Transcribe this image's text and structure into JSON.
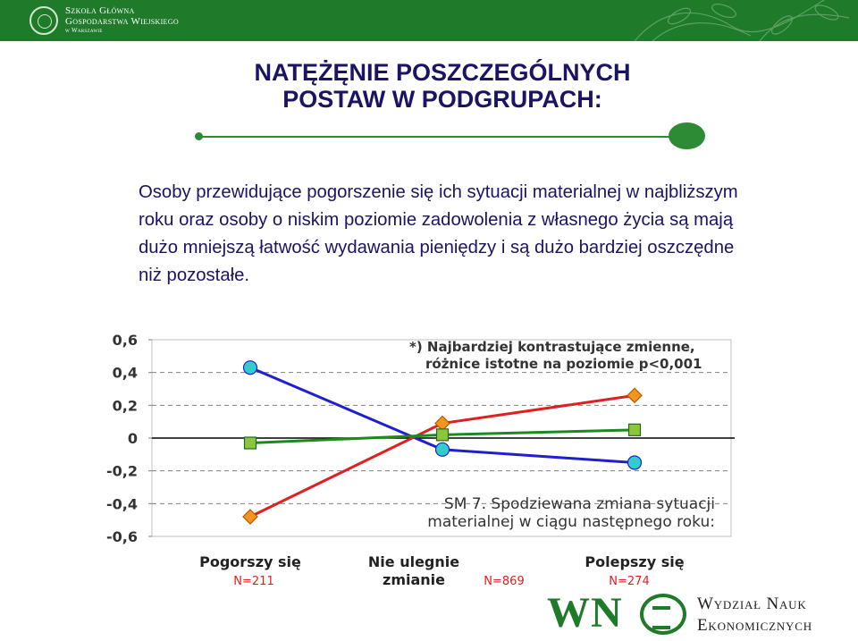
{
  "header": {
    "school_line1": "Szkoła Główna",
    "school_line2": "Gospodarstwa Wiejskiego",
    "school_line3": "w Warszawie"
  },
  "title": {
    "line1": "NATĘŻĘNIE POSZCZEGÓLNYCH",
    "line2": "POSTAW W PODGRUPACH:"
  },
  "paragraph": "Osoby przewidujące pogorszenie się ich sytuacji materialnej w najbliższym roku oraz osoby o niskim poziomie zadowolenia z własnego życia są mają dużo mniejszą łatwość wydawania pieniędzy i są dużo bardziej oszczędne niż pozostałe.",
  "chart_data": {
    "type": "line",
    "categories": [
      "Pogorszy się",
      "Nie ulegnie zmianie",
      "Polepszy się"
    ],
    "category_lines": [
      [
        "Pogorszy się"
      ],
      [
        "Nie ulegnie",
        "zmianie"
      ],
      [
        "Polepszy się"
      ]
    ],
    "counts": [
      "N=211",
      "N=869",
      "N=274"
    ],
    "series": [
      {
        "name": "blue",
        "color": "#1f1fd1",
        "fill": "#33cccc",
        "marker": "circle",
        "values": [
          0.43,
          -0.07,
          -0.15
        ]
      },
      {
        "name": "red",
        "color": "#e02020",
        "fill": "#f7941d",
        "marker": "diamond",
        "values": [
          -0.48,
          0.09,
          0.26
        ]
      },
      {
        "name": "green",
        "color": "#1e8a1e",
        "fill": "#8cc63f",
        "marker": "square",
        "values": [
          -0.03,
          0.02,
          0.05
        ]
      }
    ],
    "ylim": [
      -0.6,
      0.6
    ],
    "yticks": [
      "0,6",
      "0,4",
      "0,2",
      "0",
      "-0,2",
      "-0,4",
      "-0,6"
    ],
    "note_lines": [
      "*) Najbardziej kontrastujące zmienne,",
      "różnice istotne na poziomie p<0,001"
    ],
    "caption_lines": [
      "SM 7. Spodziewana zmiana sytuacji",
      "materialnej w ciągu następnego roku:"
    ],
    "grid": true
  },
  "footer": {
    "logo_text": "WN",
    "faculty_line1": "Wydział Nauk",
    "faculty_line2": "Ekonomicznych"
  },
  "colors": {
    "brand_green": "#1f7a2a",
    "text_navy": "#1b1464"
  }
}
